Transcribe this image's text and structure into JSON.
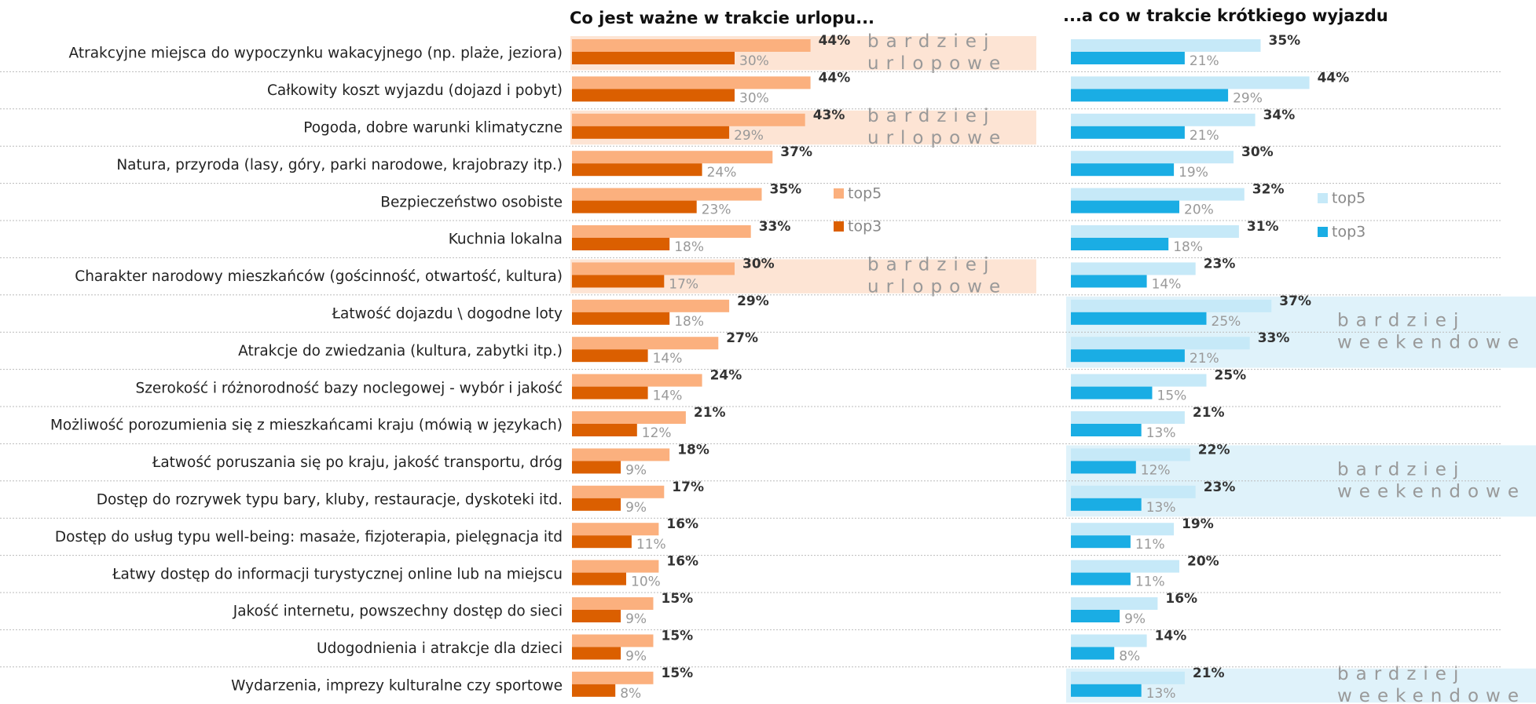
{
  "chart_data": [
    {
      "type": "bar",
      "orientation": "horizontal",
      "title": "Co jest ważne w trakcie urlopu...",
      "categories": [
        "Atrakcyjne miejsca do wypoczynku wakacyjnego (np. plaże, jeziora)",
        "Całkowity koszt wyjazdu (dojazd i pobyt)",
        "Pogoda, dobre warunki klimatyczne",
        "Natura, przyroda (lasy, góry, parki narodowe, krajobrazy itp.)",
        "Bezpieczeństwo osobiste",
        "Kuchnia lokalna",
        "Charakter narodowy mieszkańców (gościnność, otwartość, kultura)",
        "Łatwość dojazdu \\ dogodne loty",
        "Atrakcje do zwiedzania (kultura, zabytki itp.)",
        "Szerokość i różnorodność bazy noclegowej - wybór i jakość",
        "Możliwość porozumienia się z mieszkańcami kraju (mówią w językach)",
        "Łatwość poruszania się po kraju, jakość transportu, dróg",
        "Dostęp do rozrywek typu bary, kluby, restauracje, dyskoteki itd.",
        "Dostęp do usług typu well-being: masaże, fizjoterapia, pielęgnacja itd",
        "Łatwy dostęp do informacji turystycznej online lub na miejscu",
        "Jakość internetu, powszechny dostęp do sieci",
        "Udogodnienia i atrakcje dla dzieci",
        "Wydarzenia, imprezy kulturalne czy sportowe"
      ],
      "series": [
        {
          "name": "top5",
          "color": "#fbb07e",
          "values": [
            44,
            44,
            43,
            37,
            35,
            33,
            30,
            29,
            27,
            24,
            21,
            18,
            17,
            16,
            16,
            15,
            15,
            15
          ],
          "value_labels": [
            "44%",
            "44%",
            "43%",
            "37%",
            "35%",
            "33%",
            "30%",
            "29%",
            "27%",
            "24%",
            "21%",
            "18%",
            "17%",
            "16%",
            "16%",
            "15%",
            "15%",
            "15%"
          ]
        },
        {
          "name": "top3",
          "color": "#db5f00",
          "values": [
            30,
            30,
            29,
            24,
            23,
            18,
            17,
            18,
            14,
            14,
            12,
            9,
            9,
            11,
            10,
            9,
            9,
            8
          ],
          "value_labels": [
            "30%",
            "30%",
            "29%",
            "24%",
            "23%",
            "18%",
            "17%",
            "18%",
            "14%",
            "14%",
            "12%",
            "9%",
            "9%",
            "11%",
            "10%",
            "9%",
            "9%",
            "8%"
          ]
        }
      ],
      "annotations": [
        {
          "lines": [
            "bardziej",
            "urlopowe"
          ],
          "rows": [
            0
          ]
        },
        {
          "lines": [
            "bardziej",
            "urlopowe"
          ],
          "rows": [
            2
          ]
        },
        {
          "lines": [
            "bardziej",
            "urlopowe"
          ],
          "rows": [
            6
          ]
        }
      ],
      "highlight_color": "#fde4d4"
    },
    {
      "type": "bar",
      "orientation": "horizontal",
      "title": "...a co w trakcie krótkiego wyjazdu",
      "series": [
        {
          "name": "top5",
          "color": "#c6e9f8",
          "values": [
            35,
            44,
            34,
            30,
            32,
            31,
            23,
            37,
            33,
            25,
            21,
            22,
            23,
            19,
            20,
            16,
            14,
            21
          ],
          "value_labels": [
            "35%",
            "44%",
            "34%",
            "30%",
            "32%",
            "31%",
            "23%",
            "37%",
            "33%",
            "25%",
            "21%",
            "22%",
            "23%",
            "19%",
            "20%",
            "16%",
            "14%",
            "21%"
          ]
        },
        {
          "name": "top3",
          "color": "#1aade4",
          "values": [
            21,
            29,
            21,
            19,
            20,
            18,
            14,
            25,
            21,
            15,
            13,
            12,
            13,
            11,
            11,
            9,
            8,
            13
          ],
          "value_labels": [
            "21%",
            "29%",
            "21%",
            "19%",
            "20%",
            "18%",
            "14%",
            "25%",
            "21%",
            "15%",
            "13%",
            "12%",
            "13%",
            "11%",
            "11%",
            "9%",
            "8%",
            "13%"
          ]
        }
      ],
      "annotations": [
        {
          "lines": [
            "bardziej",
            "weekendowe"
          ],
          "rows": [
            7,
            8
          ]
        },
        {
          "lines": [
            "bardziej",
            "weekendowe"
          ],
          "rows": [
            11,
            12
          ]
        },
        {
          "lines": [
            "bardziej",
            "weekendowe"
          ],
          "rows": [
            17
          ]
        }
      ],
      "highlight_color": "#dff2fa"
    }
  ]
}
